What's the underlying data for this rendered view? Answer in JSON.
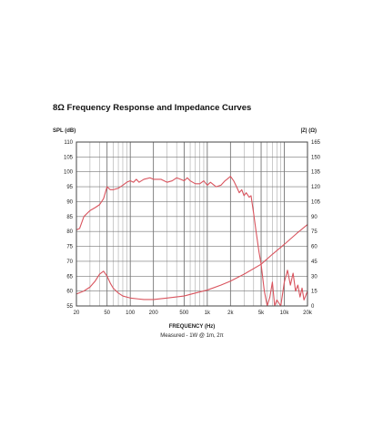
{
  "title": "8Ω Frequency Response and Impedance Curves",
  "chart_data": {
    "type": "line",
    "title": "8Ω Frequency Response and Impedance Curves",
    "xlabel": "FREQUENCY (Hz)",
    "subtitle": "Measured - 1W @ 1m, 2π",
    "ylabel_left": "SPL (dB)",
    "ylabel_right": "|Z| (Ω)",
    "x_scale": "log",
    "xlim": [
      20,
      20000
    ],
    "ylim_left": [
      55,
      110
    ],
    "ylim_right": [
      0,
      165
    ],
    "grid": true,
    "x_ticks": [
      {
        "v": 20,
        "label": "20"
      },
      {
        "v": 50,
        "label": "50"
      },
      {
        "v": 100,
        "label": "100"
      },
      {
        "v": 200,
        "label": "200"
      },
      {
        "v": 500,
        "label": "500"
      },
      {
        "v": 1000,
        "label": "1k"
      },
      {
        "v": 2000,
        "label": "2k"
      },
      {
        "v": 5000,
        "label": "5k"
      },
      {
        "v": 10000,
        "label": "10k"
      },
      {
        "v": 20000,
        "label": "20k"
      }
    ],
    "y_left_ticks": [
      110,
      105,
      100,
      95,
      90,
      85,
      80,
      75,
      70,
      65,
      60,
      55
    ],
    "y_right_ticks": [
      165,
      150,
      135,
      120,
      105,
      90,
      75,
      60,
      45,
      30,
      15,
      0
    ],
    "series": [
      {
        "axis": "left",
        "color": "#d9545e",
        "points": [
          [
            20,
            80.5
          ],
          [
            22,
            81
          ],
          [
            25,
            85
          ],
          [
            30,
            87
          ],
          [
            35,
            88
          ],
          [
            40,
            89
          ],
          [
            45,
            91
          ],
          [
            50,
            95
          ],
          [
            55,
            94
          ],
          [
            60,
            94
          ],
          [
            70,
            94.5
          ],
          [
            80,
            95.5
          ],
          [
            90,
            96.5
          ],
          [
            100,
            97
          ],
          [
            110,
            96.5
          ],
          [
            120,
            97.5
          ],
          [
            130,
            96.5
          ],
          [
            150,
            97.5
          ],
          [
            180,
            98
          ],
          [
            200,
            97.5
          ],
          [
            250,
            97.5
          ],
          [
            300,
            96.5
          ],
          [
            350,
            97
          ],
          [
            400,
            98
          ],
          [
            450,
            97.5
          ],
          [
            500,
            97
          ],
          [
            550,
            98
          ],
          [
            600,
            97
          ],
          [
            700,
            96
          ],
          [
            800,
            96
          ],
          [
            900,
            97
          ],
          [
            1000,
            95.5
          ],
          [
            1100,
            96.5
          ],
          [
            1300,
            95
          ],
          [
            1500,
            95.5
          ],
          [
            1700,
            97
          ],
          [
            1800,
            97.5
          ],
          [
            2000,
            98.5
          ],
          [
            2200,
            97
          ],
          [
            2400,
            95
          ],
          [
            2600,
            93
          ],
          [
            2800,
            94
          ],
          [
            3000,
            92
          ],
          [
            3200,
            93
          ],
          [
            3500,
            91.5
          ],
          [
            3700,
            92
          ],
          [
            4000,
            86
          ],
          [
            4300,
            80
          ],
          [
            4700,
            73
          ],
          [
            5000,
            69
          ],
          [
            5500,
            60
          ],
          [
            6000,
            55
          ],
          [
            6500,
            58
          ],
          [
            7000,
            63
          ],
          [
            7500,
            55
          ],
          [
            8000,
            57
          ],
          [
            9000,
            55
          ],
          [
            10000,
            63
          ],
          [
            11000,
            67
          ],
          [
            12000,
            62
          ],
          [
            13000,
            66
          ],
          [
            14000,
            60
          ],
          [
            15000,
            62
          ],
          [
            16000,
            58
          ],
          [
            17000,
            61
          ],
          [
            18000,
            57
          ],
          [
            20000,
            60
          ]
        ]
      },
      {
        "axis": "right",
        "color": "#d9545e",
        "points": [
          [
            20,
            12
          ],
          [
            25,
            15
          ],
          [
            30,
            19
          ],
          [
            35,
            25
          ],
          [
            40,
            32
          ],
          [
            45,
            35
          ],
          [
            50,
            30
          ],
          [
            55,
            23
          ],
          [
            60,
            18
          ],
          [
            70,
            13
          ],
          [
            80,
            10
          ],
          [
            100,
            8
          ],
          [
            130,
            7
          ],
          [
            150,
            6.5
          ],
          [
            200,
            6.5
          ],
          [
            300,
            8
          ],
          [
            500,
            10
          ],
          [
            700,
            13
          ],
          [
            1000,
            16
          ],
          [
            1500,
            21
          ],
          [
            2000,
            25
          ],
          [
            3000,
            32
          ],
          [
            5000,
            42
          ],
          [
            7000,
            52
          ],
          [
            10000,
            62
          ],
          [
            15000,
            74
          ],
          [
            20000,
            82
          ]
        ]
      }
    ]
  }
}
